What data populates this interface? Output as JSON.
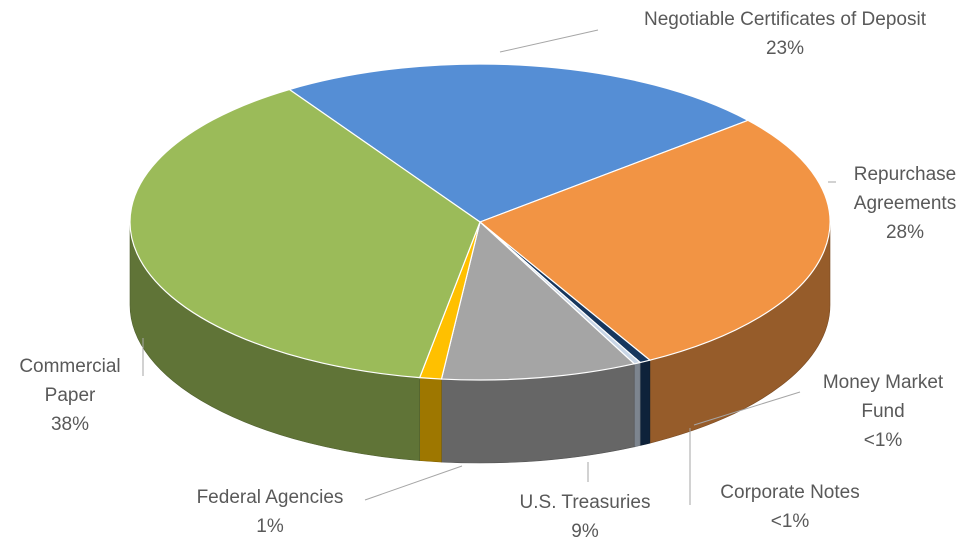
{
  "chart_data": {
    "type": "pie",
    "categories": [
      "Negotiable Certificates of Deposit",
      "Repurchase Agreements",
      "Money Market Fund",
      "Corporate Notes",
      "U.S. Treasuries",
      "Federal Agencies",
      "Commercial Paper"
    ],
    "values": [
      23,
      28,
      0.5,
      0.3,
      9,
      1,
      38
    ],
    "value_labels": [
      "23%",
      "28%",
      "<1%",
      "<1%",
      "9%",
      "1%",
      "38%"
    ],
    "colors": [
      "#558ed5",
      "#f29444",
      "#17375e",
      "#c9d6e6",
      "#a5a5a5",
      "#ffc000",
      "#9bbb59"
    ]
  }
}
